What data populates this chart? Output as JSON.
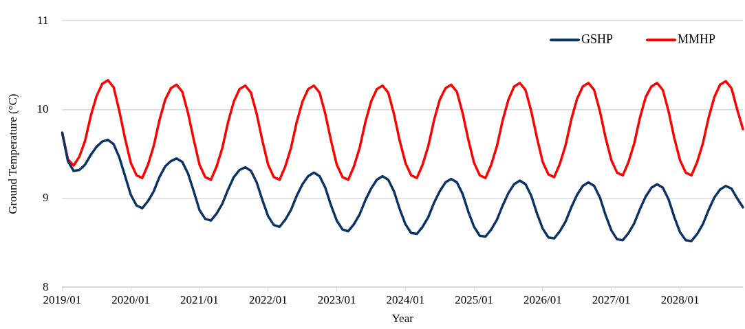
{
  "chart_data": {
    "type": "line",
    "xlabel": "Year",
    "ylabel": "Ground Temperature (°C)",
    "categories": [
      "2019/01",
      null,
      null,
      null,
      null,
      null,
      null,
      null,
      null,
      null,
      null,
      null,
      "2020/01",
      null,
      null,
      null,
      null,
      null,
      null,
      null,
      null,
      null,
      null,
      null,
      "2021/01",
      null,
      null,
      null,
      null,
      null,
      null,
      null,
      null,
      null,
      null,
      null,
      "2022/01",
      null,
      null,
      null,
      null,
      null,
      null,
      null,
      null,
      null,
      null,
      null,
      "2023/01",
      null,
      null,
      null,
      null,
      null,
      null,
      null,
      null,
      null,
      null,
      null,
      "2024/01",
      null,
      null,
      null,
      null,
      null,
      null,
      null,
      null,
      null,
      null,
      null,
      "2025/01",
      null,
      null,
      null,
      null,
      null,
      null,
      null,
      null,
      null,
      null,
      null,
      "2026/01",
      null,
      null,
      null,
      null,
      null,
      null,
      null,
      null,
      null,
      null,
      null,
      "2027/01",
      null,
      null,
      null,
      null,
      null,
      null,
      null,
      null,
      null,
      null,
      null,
      "2028/01",
      null,
      null,
      null,
      null,
      null,
      null,
      null,
      null,
      null,
      null,
      null
    ],
    "series": [
      {
        "name": "GSHP",
        "color": "#0b3364",
        "values": [
          9.74,
          9.42,
          9.31,
          9.32,
          9.38,
          9.49,
          9.58,
          9.64,
          9.66,
          9.61,
          9.46,
          9.25,
          9.04,
          8.92,
          8.89,
          8.97,
          9.08,
          9.24,
          9.36,
          9.42,
          9.45,
          9.41,
          9.28,
          9.08,
          8.87,
          8.77,
          8.75,
          8.83,
          8.94,
          9.1,
          9.24,
          9.32,
          9.35,
          9.31,
          9.18,
          8.98,
          8.8,
          8.7,
          8.68,
          8.76,
          8.87,
          9.03,
          9.16,
          9.25,
          9.29,
          9.25,
          9.12,
          8.92,
          8.75,
          8.65,
          8.63,
          8.71,
          8.82,
          8.98,
          9.11,
          9.21,
          9.25,
          9.21,
          9.08,
          8.88,
          8.71,
          8.61,
          8.6,
          8.68,
          8.79,
          8.95,
          9.08,
          9.18,
          9.22,
          9.18,
          9.05,
          8.85,
          8.68,
          8.58,
          8.57,
          8.65,
          8.76,
          8.92,
          9.06,
          9.16,
          9.2,
          9.16,
          9.03,
          8.83,
          8.66,
          8.56,
          8.55,
          8.63,
          8.74,
          8.9,
          9.04,
          9.14,
          9.18,
          9.14,
          9.01,
          8.81,
          8.64,
          8.54,
          8.53,
          8.61,
          8.72,
          8.88,
          9.02,
          9.12,
          9.16,
          9.12,
          8.99,
          8.79,
          8.62,
          8.53,
          8.52,
          8.6,
          8.71,
          8.87,
          9.01,
          9.1,
          9.14,
          9.11,
          9.0,
          8.9
        ]
      },
      {
        "name": "MMHP",
        "color": "#ff0000",
        "values": [
          9.74,
          9.44,
          9.37,
          9.47,
          9.65,
          9.93,
          10.15,
          10.29,
          10.33,
          10.25,
          9.98,
          9.67,
          9.4,
          9.26,
          9.23,
          9.38,
          9.59,
          9.88,
          10.11,
          10.24,
          10.28,
          10.2,
          9.96,
          9.66,
          9.38,
          9.24,
          9.21,
          9.36,
          9.57,
          9.86,
          10.09,
          10.23,
          10.27,
          10.19,
          9.95,
          9.65,
          9.38,
          9.24,
          9.21,
          9.36,
          9.57,
          9.86,
          10.09,
          10.23,
          10.27,
          10.19,
          9.95,
          9.65,
          9.38,
          9.24,
          9.21,
          9.36,
          9.57,
          9.86,
          10.09,
          10.23,
          10.27,
          10.19,
          9.95,
          9.65,
          9.4,
          9.26,
          9.23,
          9.38,
          9.59,
          9.88,
          10.11,
          10.24,
          10.28,
          10.2,
          9.96,
          9.66,
          9.4,
          9.26,
          9.23,
          9.38,
          9.59,
          9.88,
          10.11,
          10.26,
          10.3,
          10.22,
          9.98,
          9.68,
          9.41,
          9.27,
          9.24,
          9.39,
          9.6,
          9.89,
          10.12,
          10.26,
          10.3,
          10.22,
          9.98,
          9.68,
          9.43,
          9.29,
          9.26,
          9.41,
          9.62,
          9.91,
          10.14,
          10.26,
          10.3,
          10.22,
          9.98,
          9.68,
          9.43,
          9.29,
          9.26,
          9.41,
          9.62,
          9.91,
          10.14,
          10.28,
          10.32,
          10.24,
          10.0,
          9.78
        ]
      }
    ],
    "ylim": [
      8,
      11
    ],
    "yticks": [
      8,
      9,
      10,
      11
    ],
    "grid": "y",
    "legend": "top right",
    "marker": "none",
    "line_style": "solid"
  }
}
